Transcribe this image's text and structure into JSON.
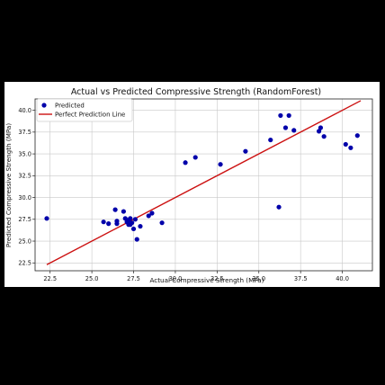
{
  "chart_data": {
    "type": "scatter",
    "title": "Actual vs Predicted Compressive Strength (RandomForest)",
    "xlabel": "Actual Compressive Strength (MPa)",
    "ylabel": "Predicted Compressive Strength (MPa)",
    "xlim": [
      21.6,
      41.8
    ],
    "ylim": [
      21.6,
      41.3
    ],
    "x_ticks": [
      "22.5",
      "25.0",
      "27.5",
      "30.0",
      "32.5",
      "35.0",
      "37.5",
      "40.0"
    ],
    "x_tick_values": [
      22.5,
      25.0,
      27.5,
      30.0,
      32.5,
      35.0,
      37.5,
      40.0
    ],
    "y_ticks": [
      "22.5",
      "25.0",
      "27.5",
      "30.0",
      "32.5",
      "35.0",
      "37.5",
      "40.0"
    ],
    "y_tick_values": [
      22.5,
      25.0,
      27.5,
      30.0,
      32.5,
      35.0,
      37.5,
      40.0
    ],
    "grid": true,
    "legend_position": "top-left",
    "series": [
      {
        "name": "Predicted",
        "kind": "scatter",
        "color": "#0000aa",
        "points": [
          [
            22.3,
            27.6
          ],
          [
            25.7,
            27.2
          ],
          [
            26.0,
            27.0
          ],
          [
            26.4,
            28.6
          ],
          [
            26.5,
            27.3
          ],
          [
            26.5,
            27.0
          ],
          [
            26.9,
            28.4
          ],
          [
            27.0,
            27.6
          ],
          [
            27.1,
            27.2
          ],
          [
            27.2,
            27.4
          ],
          [
            27.2,
            26.9
          ],
          [
            27.3,
            27.6
          ],
          [
            27.3,
            26.9
          ],
          [
            27.4,
            27.1
          ],
          [
            27.5,
            26.4
          ],
          [
            27.6,
            27.5
          ],
          [
            27.7,
            25.2
          ],
          [
            27.9,
            26.7
          ],
          [
            28.4,
            27.9
          ],
          [
            28.6,
            28.2
          ],
          [
            29.2,
            27.1
          ],
          [
            30.6,
            34.0
          ],
          [
            31.2,
            34.6
          ],
          [
            32.7,
            33.8
          ],
          [
            34.2,
            35.3
          ],
          [
            35.7,
            36.6
          ],
          [
            36.2,
            28.9
          ],
          [
            36.3,
            39.4
          ],
          [
            36.6,
            38.0
          ],
          [
            36.8,
            39.4
          ],
          [
            37.1,
            37.7
          ],
          [
            38.6,
            37.6
          ],
          [
            38.7,
            38.0
          ],
          [
            38.9,
            37.0
          ],
          [
            40.2,
            36.1
          ],
          [
            40.5,
            35.7
          ],
          [
            40.9,
            37.1
          ]
        ]
      },
      {
        "name": "Perfect Prediction Line",
        "kind": "line",
        "color": "#cc1111",
        "points": [
          [
            22.3,
            22.3
          ],
          [
            41.1,
            41.1
          ]
        ]
      }
    ]
  }
}
